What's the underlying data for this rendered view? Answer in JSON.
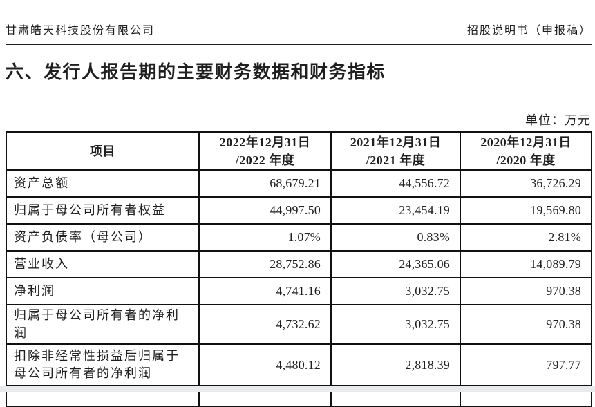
{
  "page_header": {
    "company": "甘肃皓天科技股份有限公司",
    "doc_type": "招股说明书（申报稿）"
  },
  "section_title": "六、发行人报告期的主要财务数据和财务指标",
  "unit_label": "单位：万元",
  "table": {
    "header": {
      "item_col": "项目",
      "periods": [
        {
          "line1": "2022年12月31日",
          "line2": "/2022 年度"
        },
        {
          "line1": "2021年12月31日",
          "line2": "/2021 年度"
        },
        {
          "line1": "2020年12月31日",
          "line2": "/2020 年度"
        }
      ]
    },
    "rows": [
      {
        "label": "资产总额",
        "values": [
          "68,679.21",
          "44,556.72",
          "36,726.29"
        ]
      },
      {
        "label": "归属于母公司所有者权益",
        "values": [
          "44,997.50",
          "23,454.19",
          "19,569.80"
        ]
      },
      {
        "label": "资产负债率（母公司）",
        "values": [
          "1.07%",
          "0.83%",
          "2.81%"
        ]
      },
      {
        "label": "营业收入",
        "values": [
          "28,752.86",
          "24,365.06",
          "14,089.79"
        ]
      },
      {
        "label": "净利润",
        "values": [
          "4,741.16",
          "3,032.75",
          "970.38"
        ]
      },
      {
        "label": "归属于母公司所有者的净利润",
        "values": [
          "4,732.62",
          "3,032.75",
          "970.38"
        ]
      },
      {
        "label": "扣除非经常性损益后归属于母公司所有者的净利润",
        "values": [
          "4,480.12",
          "2,818.39",
          "797.77"
        ]
      }
    ]
  },
  "colors": {
    "text": "#1f1f1f",
    "table_border": "#111111",
    "page_background": "#ffffff",
    "page_end_bar": "#e8eaeb"
  }
}
